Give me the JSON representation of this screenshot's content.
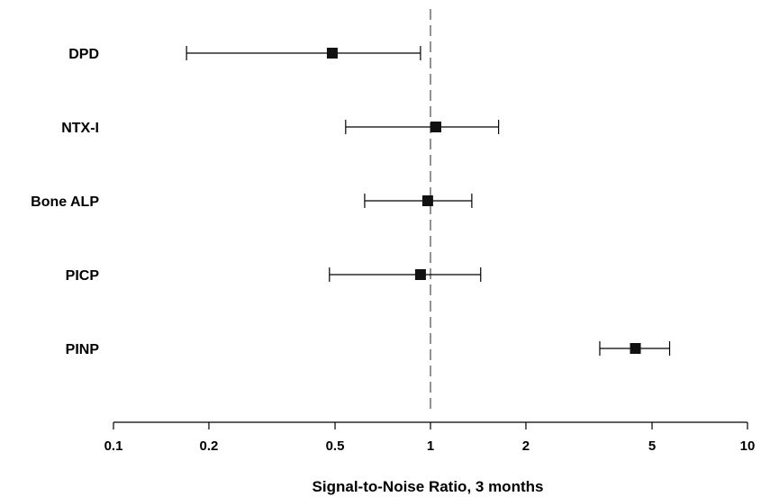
{
  "chart_data": {
    "type": "forest",
    "title": "",
    "xlabel": "Signal-to-Noise Ratio, 3 months",
    "ylabel": "",
    "x_scale": "log",
    "xlim": [
      0.1,
      10
    ],
    "x_ticks": [
      0.1,
      0.2,
      0.5,
      1,
      2,
      5,
      10
    ],
    "x_tick_labels": [
      "0.1",
      "0.2",
      "0.5",
      "1",
      "2",
      "5",
      "10"
    ],
    "reference_line": 1,
    "reference_line_style": "dashed",
    "grid": false,
    "marker": "square",
    "colors": {
      "marker": "#111111",
      "line": "#000000",
      "reference": "#777777"
    },
    "rows": [
      {
        "label": "DPD",
        "estimate": 0.49,
        "lower": 0.17,
        "upper": 0.93
      },
      {
        "label": "NTX-I",
        "estimate": 1.04,
        "lower": 0.54,
        "upper": 1.64
      },
      {
        "label": "Bone ALP",
        "estimate": 0.98,
        "lower": 0.62,
        "upper": 1.35
      },
      {
        "label": "PICP",
        "estimate": 0.93,
        "lower": 0.48,
        "upper": 1.44
      },
      {
        "label": "PINP",
        "estimate": 4.43,
        "lower": 3.42,
        "upper": 5.68
      }
    ]
  }
}
